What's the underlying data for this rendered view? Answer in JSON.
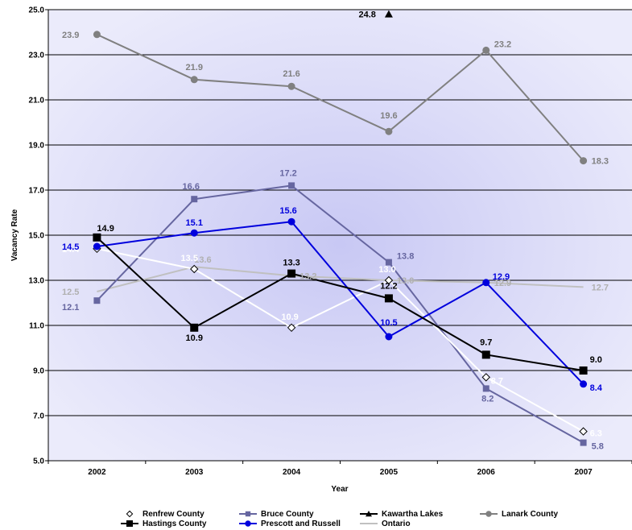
{
  "chart_data": {
    "type": "line",
    "title": "",
    "xlabel": "Year",
    "ylabel": "Vacancy Rate",
    "x": [
      "2002",
      "2003",
      "2004",
      "2005",
      "2006",
      "2007"
    ],
    "ylim": [
      5.0,
      25.0
    ],
    "yticks": [
      "5.0",
      "7.0",
      "9.0",
      "11.0",
      "13.0",
      "15.0",
      "17.0",
      "19.0",
      "21.0",
      "23.0",
      "25.0"
    ],
    "grid": true,
    "legend_position": "bottom",
    "series": [
      {
        "name": "Ontario",
        "color": "#c0c0c0",
        "marker": "none",
        "label_color": "#b0b0b0",
        "values": [
          12.5,
          13.6,
          13.2,
          13.0,
          12.9,
          12.7
        ]
      },
      {
        "name": "Lanark County",
        "color": "#808080",
        "marker": "circle",
        "label_color": "#808080",
        "values": [
          23.9,
          21.9,
          21.6,
          19.6,
          23.2,
          18.3
        ]
      },
      {
        "name": "Bruce County",
        "color": "#6666a0",
        "marker": "square",
        "label_color": "#6666a0",
        "values": [
          12.1,
          16.6,
          17.2,
          13.8,
          8.2,
          5.8
        ]
      },
      {
        "name": "Renfrew County",
        "color": "#ffffff",
        "marker": "diamond",
        "label_color": "#ffffff",
        "values": [
          14.4,
          13.5,
          10.9,
          13.0,
          8.7,
          6.3
        ]
      },
      {
        "name": "Prescott and Russell",
        "color": "#0000dd",
        "marker": "circle",
        "label_color": "#0000dd",
        "values": [
          14.5,
          15.1,
          15.6,
          10.5,
          12.9,
          8.4
        ]
      },
      {
        "name": "Hastings County",
        "color": "#000000",
        "marker": "square",
        "label_color": "#000000",
        "values": [
          14.9,
          10.9,
          13.3,
          12.2,
          9.7,
          9.0
        ]
      },
      {
        "name": "Kawartha Lakes",
        "color": "#000000",
        "marker": "triangle",
        "label_color": "#000000",
        "values": [
          null,
          null,
          null,
          24.8,
          null,
          null
        ]
      }
    ],
    "legend": [
      [
        "Renfrew County",
        "Bruce County",
        "Kawartha Lakes",
        "Lanark County"
      ],
      [
        "Hastings County",
        "Prescott and Russell",
        "Ontario"
      ]
    ]
  }
}
